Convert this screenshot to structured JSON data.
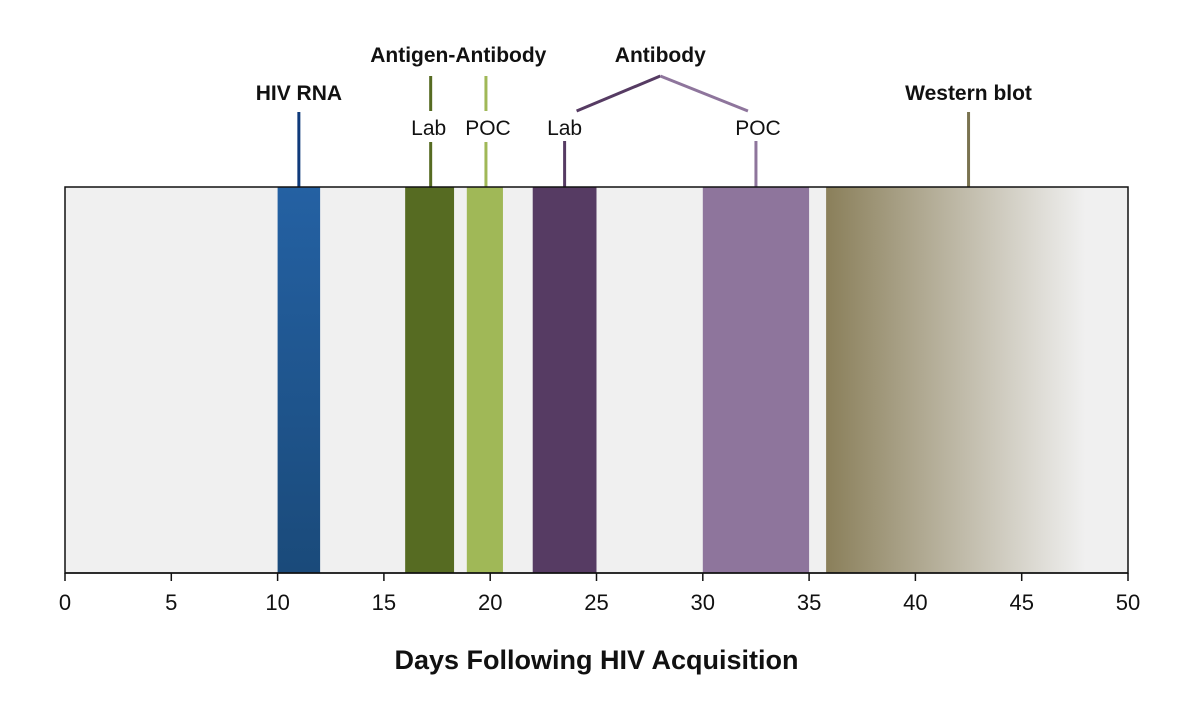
{
  "chart_data": {
    "type": "bar",
    "xlabel": "Days Following HIV Acquisition",
    "xlim": [
      0,
      50
    ],
    "x_ticks": [
      0,
      5,
      10,
      15,
      20,
      25,
      30,
      35,
      40,
      45,
      50
    ],
    "x_tick_labels": [
      "0",
      "5",
      "10",
      "15",
      "20",
      "25",
      "30",
      "35",
      "40",
      "45",
      "50"
    ],
    "grid": false,
    "legend": "none",
    "background_color": "#f0f0f0",
    "series": [
      {
        "key": "hiv-rna",
        "start": 10,
        "end": 12,
        "marker": 11,
        "color_top": "#2461a3",
        "color_bottom": "#1a4a7a",
        "line_color": "#0f3a7a",
        "gradient": false
      },
      {
        "key": "antigen-antibody-lab",
        "start": 16,
        "end": 18.3,
        "marker": 17.2,
        "color_top": "#566b22",
        "color_bottom": "#566b22",
        "line_color": "#566b22",
        "gradient": false
      },
      {
        "key": "antigen-antibody-poc",
        "start": 18.9,
        "end": 20.6,
        "marker": 19.8,
        "color_top": "#a0b857",
        "color_bottom": "#a0b857",
        "line_color": "#a0b857",
        "gradient": false
      },
      {
        "key": "antibody-lab",
        "start": 22,
        "end": 25,
        "marker": 23.5,
        "color_top": "#563b63",
        "color_bottom": "#563b63",
        "line_color": "#563b63",
        "gradient": false
      },
      {
        "key": "antibody-poc",
        "start": 30,
        "end": 35,
        "marker": 32.5,
        "color_top": "#8e759c",
        "color_bottom": "#8e759c",
        "line_color": "#8e759c",
        "gradient": false
      },
      {
        "key": "western-blot",
        "start": 35.8,
        "end": 50,
        "fade_end": 48,
        "marker": 42.5,
        "color_top": "#8a7f5a",
        "color_bottom": "#8a7f5a",
        "line_color": "#7a7350",
        "gradient": true
      }
    ],
    "annotations": {
      "hiv_rna": "HIV RNA",
      "antigen_antibody": "Antigen-Antibody",
      "antibody": "Antibody",
      "western_blot": "Western blot",
      "lab_1": "Lab",
      "poc_1": "POC",
      "lab_2": "Lab",
      "poc_2": "POC"
    }
  }
}
